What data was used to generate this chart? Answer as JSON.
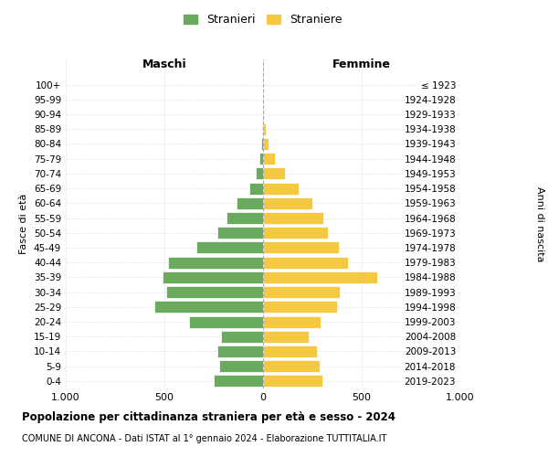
{
  "age_groups": [
    "0-4",
    "5-9",
    "10-14",
    "15-19",
    "20-24",
    "25-29",
    "30-34",
    "35-39",
    "40-44",
    "45-49",
    "50-54",
    "55-59",
    "60-64",
    "65-69",
    "70-74",
    "75-79",
    "80-84",
    "85-89",
    "90-94",
    "95-99",
    "100+"
  ],
  "birth_years": [
    "2019-2023",
    "2014-2018",
    "2009-2013",
    "2004-2008",
    "1999-2003",
    "1994-1998",
    "1989-1993",
    "1984-1988",
    "1979-1983",
    "1974-1978",
    "1969-1973",
    "1964-1968",
    "1959-1963",
    "1954-1958",
    "1949-1953",
    "1944-1948",
    "1939-1943",
    "1934-1938",
    "1929-1933",
    "1924-1928",
    "≤ 1923"
  ],
  "maschi": [
    250,
    220,
    230,
    215,
    375,
    550,
    490,
    510,
    480,
    340,
    230,
    185,
    135,
    70,
    35,
    20,
    8,
    5,
    2,
    0,
    0
  ],
  "femmine": [
    300,
    285,
    275,
    230,
    290,
    375,
    390,
    580,
    430,
    385,
    330,
    305,
    250,
    180,
    110,
    60,
    30,
    15,
    5,
    2,
    2
  ],
  "maschi_color": "#6aaa5e",
  "femmine_color": "#f5c842",
  "title": "Popolazione per cittadinanza straniera per età e sesso - 2024",
  "subtitle": "COMUNE DI ANCONA - Dati ISTAT al 1° gennaio 2024 - Elaborazione TUTTITALIA.IT",
  "legend_maschi": "Stranieri",
  "legend_femmine": "Straniere",
  "xlabel_left": "Maschi",
  "xlabel_right": "Femmine",
  "ylabel_left": "Fasce di età",
  "ylabel_right": "Anni di nascita",
  "xlim": 1000,
  "bar_height": 0.8,
  "background_color": "#ffffff",
  "grid_color": "#cccccc"
}
